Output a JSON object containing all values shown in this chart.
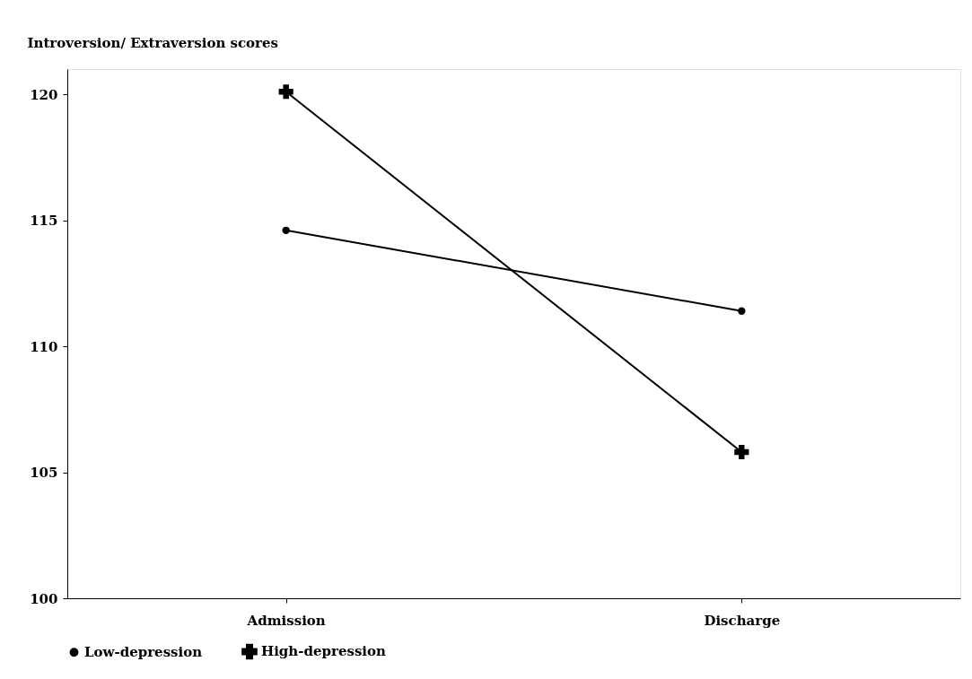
{
  "chart_data": {
    "type": "line",
    "ylabel": "Introversion/ Extraversion scores",
    "categories": [
      "Admission",
      "Discharge"
    ],
    "series": [
      {
        "name": "Low-depression",
        "color": "#000000",
        "values": [
          114.6,
          111.4
        ],
        "marker": "circle"
      },
      {
        "name": "High-depression",
        "color": "#000000",
        "values": [
          120.1,
          105.8
        ],
        "marker": "cross"
      }
    ],
    "ylim": [
      100,
      121
    ],
    "yticks": [
      100,
      105,
      110,
      115,
      120
    ],
    "grid": false,
    "legend": "bottom",
    "line_style": "solid"
  }
}
